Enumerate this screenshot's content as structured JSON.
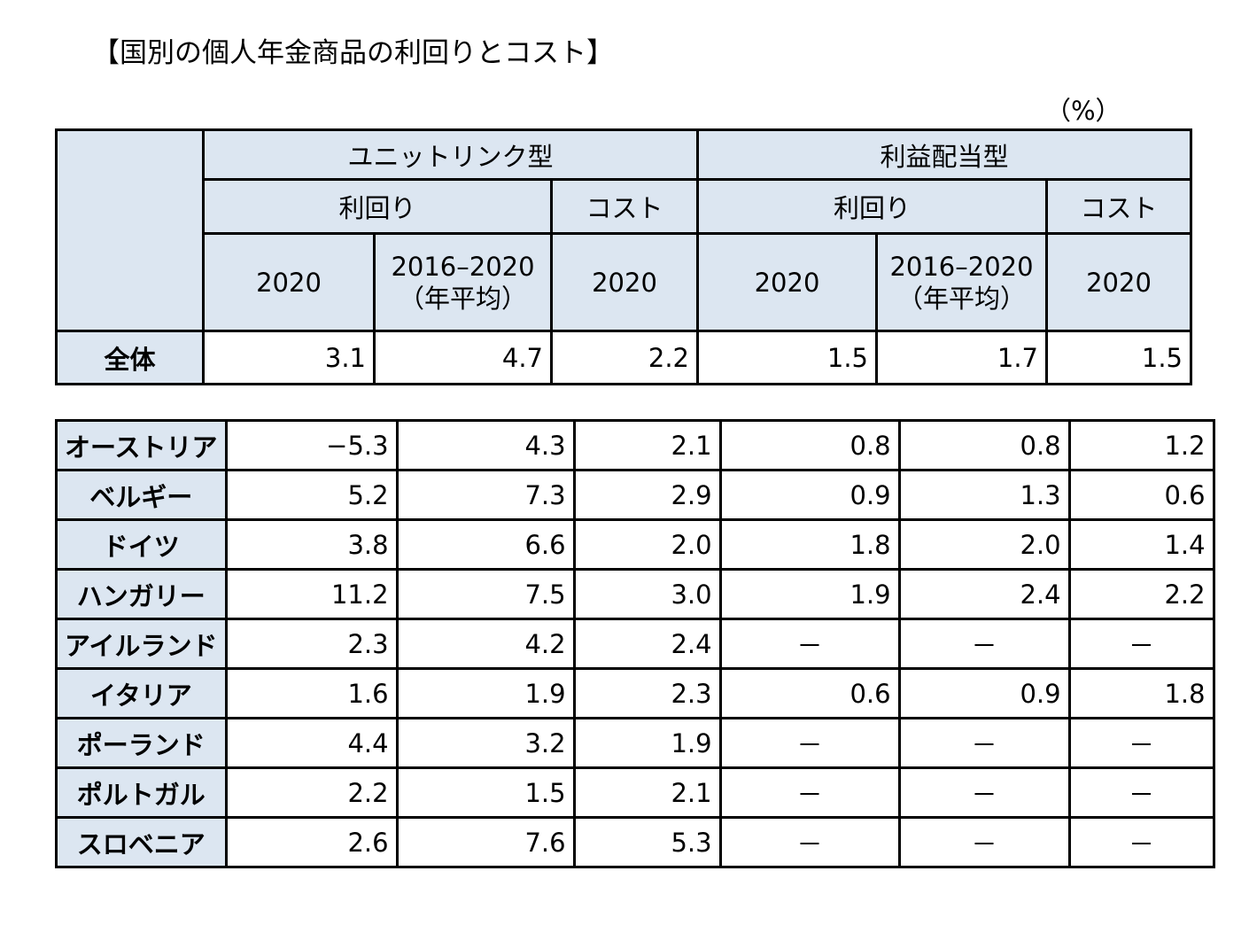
{
  "title": "【国別の個人年金商品の利回りとコスト】",
  "unit": "（%）",
  "header": {
    "group_unit_link": "ユニットリンク型",
    "group_profit": "利益配当型",
    "yield": "利回り",
    "cost": "コスト",
    "y2020": "2020",
    "y2016_2020": "2016–2020",
    "annual_avg": "（年平均）"
  },
  "total_row": {
    "label": "全体",
    "values": [
      "3.1",
      "4.7",
      "2.2",
      "1.5",
      "1.7",
      "1.5"
    ]
  },
  "rows": [
    {
      "label": "オーストリア",
      "values": [
        "−5.3",
        "4.3",
        "2.1",
        "0.8",
        "0.8",
        "1.2"
      ]
    },
    {
      "label": "ベルギー",
      "values": [
        "5.2",
        "7.3",
        "2.9",
        "0.9",
        "1.3",
        "0.6"
      ]
    },
    {
      "label": "ドイツ",
      "values": [
        "3.8",
        "6.6",
        "2.0",
        "1.8",
        "2.0",
        "1.4"
      ]
    },
    {
      "label": "ハンガリー",
      "values": [
        "11.2",
        "7.5",
        "3.0",
        "1.9",
        "2.4",
        "2.2"
      ]
    },
    {
      "label": "アイルランド",
      "values": [
        "2.3",
        "4.2",
        "2.4",
        "－",
        "－",
        "－"
      ]
    },
    {
      "label": "イタリア",
      "values": [
        "1.6",
        "1.9",
        "2.3",
        "0.6",
        "0.9",
        "1.8"
      ]
    },
    {
      "label": "ポーランド",
      "values": [
        "4.4",
        "3.2",
        "1.9",
        "－",
        "－",
        "－"
      ]
    },
    {
      "label": "ポルトガル",
      "values": [
        "2.2",
        "1.5",
        "2.1",
        "－",
        "－",
        "－"
      ]
    },
    {
      "label": "スロベニア",
      "values": [
        "2.6",
        "7.6",
        "5.3",
        "－",
        "－",
        "－"
      ]
    }
  ]
}
